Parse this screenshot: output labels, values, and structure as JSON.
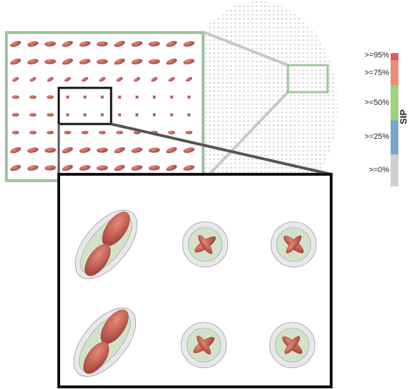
{
  "colorbar": {
    "title": "SIP",
    "labels": [
      ">=95%",
      ">=75%",
      ">=50%",
      ">=25%",
      ">=0%"
    ]
  }
}
